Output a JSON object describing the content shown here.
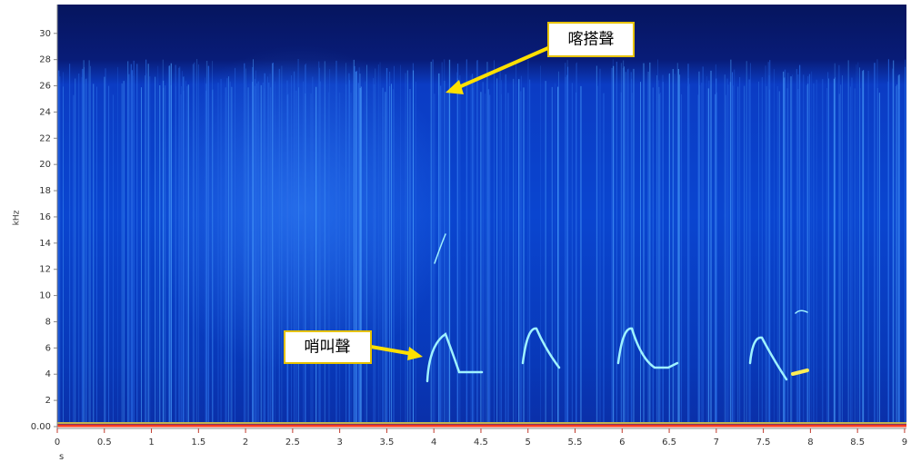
{
  "chart_data": {
    "type": "spectrogram",
    "x_label": "s",
    "y_label": "kHz",
    "xlim": [
      0,
      9.02
    ],
    "ylim": [
      0,
      32.2
    ],
    "xticks": [
      0,
      0.5,
      1,
      1.5,
      2,
      2.5,
      3,
      3.5,
      4,
      4.5,
      5,
      5.5,
      6,
      6.5,
      7,
      7.5,
      8,
      8.5,
      9
    ],
    "yticks": [
      {
        "value": 0,
        "label": "0.00"
      },
      2,
      4,
      6,
      8,
      10,
      12,
      14,
      16,
      18,
      20,
      22,
      24,
      26,
      28,
      30
    ],
    "annotations": [
      "喀搭聲",
      "哨叫聲"
    ]
  }
}
